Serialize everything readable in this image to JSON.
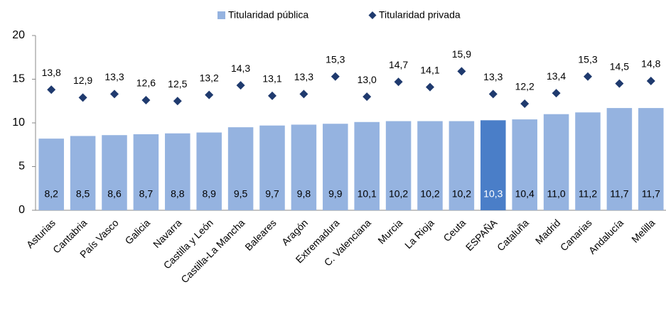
{
  "chart_data": {
    "type": "combo",
    "categories": [
      "Asturias",
      "Cantabria",
      "País Vasco",
      "Galicia",
      "Navarra",
      "Castilla y León",
      "Castilla-La Mancha",
      "Baleares",
      "Aragón",
      "Extremadura",
      "C. Valenciana",
      "Murcia",
      "La Rioja",
      "Ceuta",
      "ESPAÑA",
      "Cataluña",
      "Madrid",
      "Canarias",
      "Andalucía",
      "Melilla"
    ],
    "series": [
      {
        "name": "Titularidad pública",
        "type": "bar",
        "color": "#95b3e0",
        "colors": [
          "#95b3e0",
          "#95b3e0",
          "#95b3e0",
          "#95b3e0",
          "#95b3e0",
          "#95b3e0",
          "#95b3e0",
          "#95b3e0",
          "#95b3e0",
          "#95b3e0",
          "#95b3e0",
          "#95b3e0",
          "#95b3e0",
          "#95b3e0",
          "#4a7ec8",
          "#95b3e0",
          "#95b3e0",
          "#95b3e0",
          "#95b3e0",
          "#95b3e0"
        ],
        "values": [
          8.2,
          8.5,
          8.6,
          8.7,
          8.8,
          8.9,
          9.5,
          9.7,
          9.8,
          9.9,
          10.1,
          10.2,
          10.2,
          10.2,
          10.3,
          10.4,
          11.0,
          11.2,
          11.7,
          11.7
        ],
        "value_labels": [
          "8,2",
          "8,5",
          "8,6",
          "8,7",
          "8,8",
          "8,9",
          "9,5",
          "9,7",
          "9,8",
          "9,9",
          "10,1",
          "10,2",
          "10,2",
          "10,2",
          "10,3",
          "10,4",
          "11,0",
          "11,2",
          "11,7",
          "11,7"
        ]
      },
      {
        "name": "Titularidad privada",
        "type": "scatter",
        "color": "#1f3a6e",
        "values": [
          13.8,
          12.9,
          13.3,
          12.6,
          12.5,
          13.2,
          14.3,
          13.1,
          13.3,
          15.3,
          13.0,
          14.7,
          14.1,
          15.9,
          13.3,
          12.2,
          13.4,
          15.3,
          14.5,
          14.8
        ],
        "value_labels": [
          "13,8",
          "12,9",
          "13,3",
          "12,6",
          "12,5",
          "13,2",
          "14,3",
          "13,1",
          "13,3",
          "15,3",
          "13,0",
          "14,7",
          "14,1",
          "15,9",
          "13,3",
          "12,2",
          "13,4",
          "15,3",
          "14,5",
          "14,8"
        ]
      }
    ],
    "ylim": [
      0,
      20
    ],
    "yticks": [
      0,
      5,
      10,
      15,
      20
    ],
    "grid": false,
    "legend": "top"
  }
}
